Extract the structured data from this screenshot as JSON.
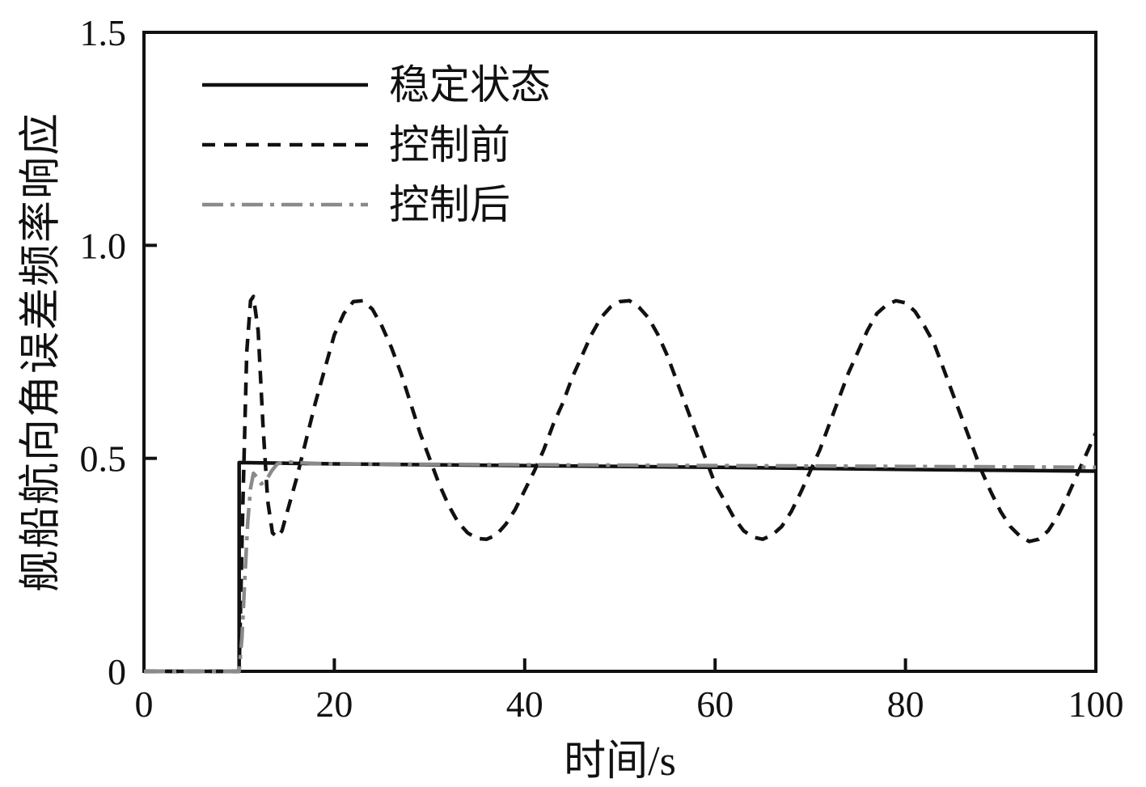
{
  "chart_data": {
    "type": "line",
    "title": "",
    "xlabel": "时间/s",
    "ylabel": "舰船航向角误差频率响应",
    "xlim": [
      0,
      100
    ],
    "ylim": [
      0,
      1.5
    ],
    "xticks": [
      0,
      20,
      40,
      60,
      80,
      100
    ],
    "xtick_labels": [
      "0",
      "20",
      "40",
      "60",
      "80",
      "100"
    ],
    "yticks": [
      0,
      0.5,
      1.0,
      1.5
    ],
    "ytick_labels": [
      "0",
      "0.5",
      "1.0",
      "1.5"
    ],
    "grid": false,
    "legend_position": "upper-left-inside",
    "axis_color": "#111111",
    "series": [
      {
        "name": "稳定状态",
        "style": "solid",
        "color": "#111111",
        "points": [
          [
            0,
            0
          ],
          [
            10,
            0
          ],
          [
            10,
            0.49
          ],
          [
            20,
            0.487
          ],
          [
            40,
            0.483
          ],
          [
            60,
            0.479
          ],
          [
            80,
            0.474
          ],
          [
            100,
            0.47
          ]
        ]
      },
      {
        "name": "控制前",
        "style": "dashed",
        "color": "#111111",
        "points": [
          [
            0,
            0
          ],
          [
            10,
            0
          ],
          [
            10.4,
            0.4
          ],
          [
            10.8,
            0.75
          ],
          [
            11.2,
            0.87
          ],
          [
            11.5,
            0.88
          ],
          [
            12,
            0.8
          ],
          [
            12.5,
            0.58
          ],
          [
            13,
            0.4
          ],
          [
            13.5,
            0.325
          ],
          [
            14,
            0.315
          ],
          [
            14.5,
            0.33
          ],
          [
            15,
            0.37
          ],
          [
            16,
            0.45
          ],
          [
            17,
            0.54
          ],
          [
            18,
            0.63
          ],
          [
            19,
            0.71
          ],
          [
            20,
            0.79
          ],
          [
            21,
            0.84
          ],
          [
            22,
            0.868
          ],
          [
            23,
            0.87
          ],
          [
            24,
            0.85
          ],
          [
            25,
            0.81
          ],
          [
            26,
            0.76
          ],
          [
            27,
            0.7
          ],
          [
            28,
            0.63
          ],
          [
            29,
            0.56
          ],
          [
            30,
            0.5
          ],
          [
            31,
            0.44
          ],
          [
            32,
            0.39
          ],
          [
            33,
            0.35
          ],
          [
            34,
            0.325
          ],
          [
            35,
            0.312
          ],
          [
            36,
            0.31
          ],
          [
            37,
            0.32
          ],
          [
            38,
            0.345
          ],
          [
            39,
            0.38
          ],
          [
            40,
            0.425
          ],
          [
            41,
            0.47
          ],
          [
            42,
            0.52
          ],
          [
            43,
            0.58
          ],
          [
            44,
            0.63
          ],
          [
            45,
            0.69
          ],
          [
            46,
            0.74
          ],
          [
            47,
            0.79
          ],
          [
            48,
            0.83
          ],
          [
            49,
            0.855
          ],
          [
            50,
            0.868
          ],
          [
            51,
            0.87
          ],
          [
            52,
            0.855
          ],
          [
            53,
            0.83
          ],
          [
            54,
            0.79
          ],
          [
            55,
            0.74
          ],
          [
            56,
            0.68
          ],
          [
            57,
            0.62
          ],
          [
            58,
            0.56
          ],
          [
            59,
            0.5
          ],
          [
            60,
            0.44
          ],
          [
            61,
            0.4
          ],
          [
            62,
            0.36
          ],
          [
            63,
            0.33
          ],
          [
            64,
            0.315
          ],
          [
            65,
            0.31
          ],
          [
            66,
            0.32
          ],
          [
            67,
            0.34
          ],
          [
            68,
            0.375
          ],
          [
            69,
            0.42
          ],
          [
            70,
            0.47
          ],
          [
            71,
            0.52
          ],
          [
            72,
            0.58
          ],
          [
            73,
            0.64
          ],
          [
            74,
            0.7
          ],
          [
            75,
            0.75
          ],
          [
            76,
            0.8
          ],
          [
            77,
            0.84
          ],
          [
            78,
            0.86
          ],
          [
            79,
            0.87
          ],
          [
            80,
            0.865
          ],
          [
            81,
            0.845
          ],
          [
            82,
            0.81
          ],
          [
            83,
            0.77
          ],
          [
            84,
            0.71
          ],
          [
            85,
            0.65
          ],
          [
            86,
            0.59
          ],
          [
            87,
            0.53
          ],
          [
            88,
            0.47
          ],
          [
            89,
            0.42
          ],
          [
            90,
            0.375
          ],
          [
            91,
            0.34
          ],
          [
            92,
            0.318
          ],
          [
            93,
            0.305
          ],
          [
            94,
            0.31
          ],
          [
            95,
            0.33
          ],
          [
            96,
            0.365
          ],
          [
            97,
            0.41
          ],
          [
            98,
            0.46
          ],
          [
            99,
            0.51
          ],
          [
            100,
            0.56
          ]
        ]
      },
      {
        "name": "控制后",
        "style": "dashdot",
        "color": "#8a8a8a",
        "points": [
          [
            0,
            0
          ],
          [
            10,
            0
          ],
          [
            10.3,
            0.08
          ],
          [
            10.6,
            0.22
          ],
          [
            10.9,
            0.35
          ],
          [
            11.2,
            0.43
          ],
          [
            11.5,
            0.465
          ],
          [
            11.9,
            0.455
          ],
          [
            12.3,
            0.44
          ],
          [
            12.8,
            0.447
          ],
          [
            13.4,
            0.47
          ],
          [
            14,
            0.487
          ],
          [
            15,
            0.492
          ],
          [
            16,
            0.49
          ],
          [
            18,
            0.488
          ],
          [
            20,
            0.487
          ],
          [
            30,
            0.486
          ],
          [
            40,
            0.485
          ],
          [
            50,
            0.484
          ],
          [
            60,
            0.483
          ],
          [
            70,
            0.482
          ],
          [
            80,
            0.481
          ],
          [
            90,
            0.48
          ],
          [
            100,
            0.479
          ]
        ]
      }
    ]
  }
}
